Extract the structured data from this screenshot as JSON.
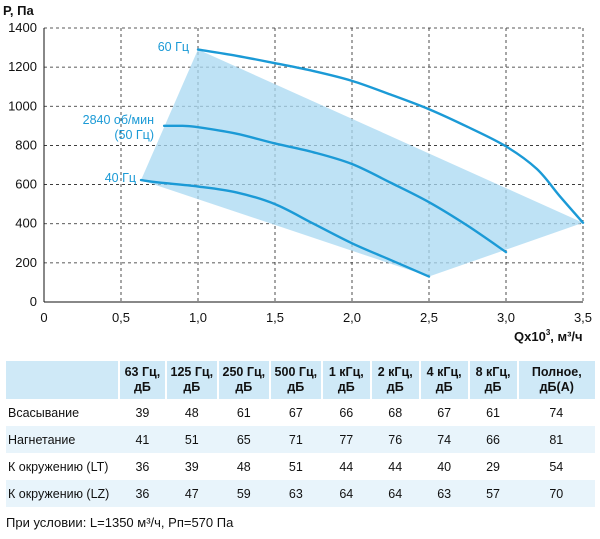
{
  "chart_data": {
    "type": "line",
    "ylabel": "Р, Па",
    "xlabel": "Qx10",
    "xlabel_sup": "3",
    "xlabel_unit": ", м³/ч",
    "xlim": [
      0,
      3.5
    ],
    "ylim": [
      0,
      1400
    ],
    "x_ticks": [
      "0",
      "0,5",
      "1,0",
      "1,5",
      "2,0",
      "2,5",
      "3,0",
      "3,5"
    ],
    "x_tick_values": [
      0,
      0.5,
      1.0,
      1.5,
      2.0,
      2.5,
      3.0,
      3.5
    ],
    "y_ticks": [
      "0",
      "200",
      "400",
      "600",
      "800",
      "1000",
      "1200",
      "1400"
    ],
    "y_tick_values": [
      0,
      200,
      400,
      600,
      800,
      1000,
      1200,
      1400
    ],
    "grid": true,
    "series": [
      {
        "name": "60 Гц",
        "points": [
          [
            1.0,
            1290
          ],
          [
            1.25,
            1258
          ],
          [
            1.5,
            1220
          ],
          [
            1.75,
            1180
          ],
          [
            2.0,
            1130
          ],
          [
            2.25,
            1060
          ],
          [
            2.5,
            985
          ],
          [
            2.75,
            895
          ],
          [
            3.0,
            795
          ],
          [
            3.2,
            680
          ],
          [
            3.35,
            540
          ],
          [
            3.5,
            405
          ]
        ]
      },
      {
        "name": "2840 об/мин (50 Гц)",
        "points": [
          [
            0.78,
            900
          ],
          [
            0.9,
            900
          ],
          [
            1.0,
            893
          ],
          [
            1.25,
            860
          ],
          [
            1.5,
            810
          ],
          [
            1.75,
            765
          ],
          [
            2.0,
            705
          ],
          [
            2.25,
            610
          ],
          [
            2.5,
            510
          ],
          [
            2.75,
            390
          ],
          [
            3.0,
            255
          ]
        ]
      },
      {
        "name": "40 Гц",
        "points": [
          [
            0.63,
            623
          ],
          [
            0.75,
            610
          ],
          [
            1.0,
            590
          ],
          [
            1.25,
            560
          ],
          [
            1.5,
            500
          ],
          [
            1.75,
            400
          ],
          [
            2.0,
            300
          ],
          [
            2.25,
            215
          ],
          [
            2.5,
            130
          ]
        ]
      }
    ],
    "shaded_region": [
      [
        0.63,
        623
      ],
      [
        1.0,
        1290
      ],
      [
        3.5,
        405
      ],
      [
        2.5,
        130
      ]
    ],
    "label_texts": {
      "s60": "60 Гц",
      "s50a": "2840 об/мин",
      "s50b": "(50 Гц)",
      "s40": "40 Гц"
    },
    "line_color": "#1b9ad6",
    "fill_color": "#a8d8f2"
  },
  "table": {
    "headers": [
      "",
      "63 Гц, дБ",
      "125 Гц, дБ",
      "250 Гц, дБ",
      "500 Гц, дБ",
      "1 кГц, дБ",
      "2 кГц, дБ",
      "4 кГц, дБ",
      "8 кГц, дБ",
      "Полное, дБ(А)"
    ],
    "rows": [
      {
        "name": "Всасывание",
        "values": [
          "39",
          "48",
          "61",
          "67",
          "66",
          "68",
          "67",
          "61",
          "74"
        ]
      },
      {
        "name": "Нагнетание",
        "values": [
          "41",
          "51",
          "65",
          "71",
          "77",
          "76",
          "74",
          "66",
          "81"
        ]
      },
      {
        "name": "К окружению (LT)",
        "values": [
          "36",
          "39",
          "48",
          "51",
          "44",
          "44",
          "40",
          "29",
          "54"
        ]
      },
      {
        "name": "К окружению (LZ)",
        "values": [
          "36",
          "47",
          "59",
          "63",
          "64",
          "64",
          "63",
          "57",
          "70"
        ]
      }
    ],
    "header_color": "#cfe9f7",
    "alt_row_color": "#e8f4fb"
  },
  "footnote": "При условии: L=1350 м³/ч, Pп=570 Па"
}
